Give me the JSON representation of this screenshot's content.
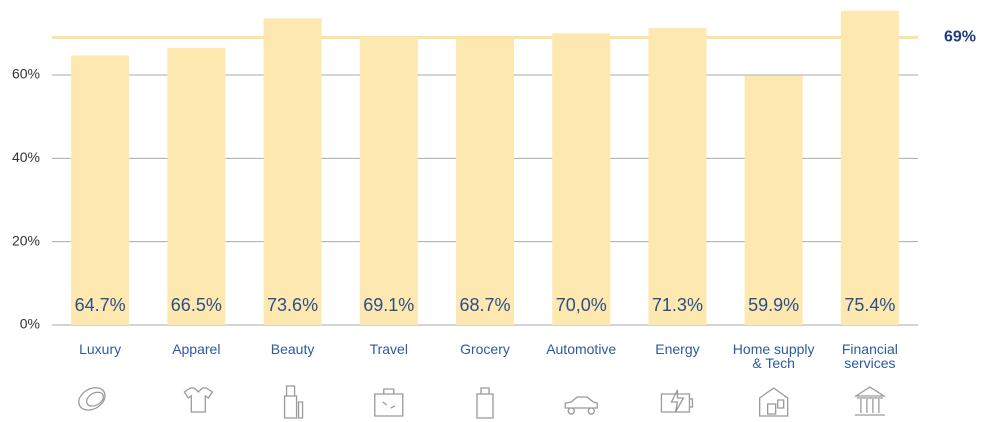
{
  "chart_data": {
    "type": "bar",
    "categories": [
      "Luxury",
      "Apparel",
      "Beauty",
      "Travel",
      "Grocery",
      "Automotive",
      "Energy",
      "Home supply\n& Tech",
      "Financial\nservices"
    ],
    "values": [
      64.7,
      66.5,
      73.6,
      69.1,
      68.7,
      70.0,
      71.3,
      59.9,
      75.4
    ],
    "value_labels": [
      "64.7%",
      "66.5%",
      "73.6%",
      "69.1%",
      "68.7%",
      "70,0%",
      "71.3%",
      "59.9%",
      "75.4%"
    ],
    "color": "#fde8b0",
    "average": {
      "value": 69,
      "label": "69%"
    },
    "ylim": [
      0,
      78
    ],
    "yticks": [
      {
        "value": 0,
        "label": "0%"
      },
      {
        "value": 20,
        "label": "20%"
      },
      {
        "value": 40,
        "label": "40%"
      },
      {
        "value": 60,
        "label": "60%"
      }
    ],
    "grid": true
  }
}
